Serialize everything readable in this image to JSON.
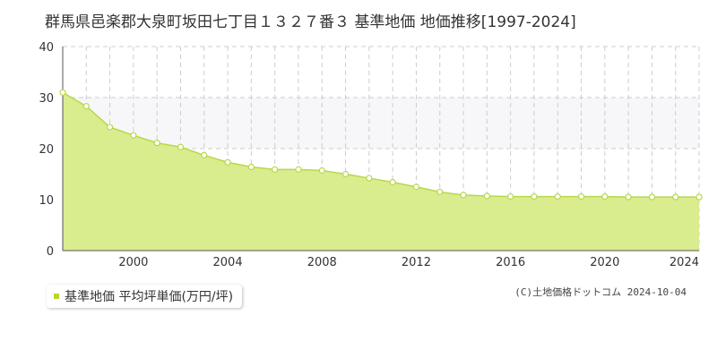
{
  "title": "群馬県邑楽郡大泉町坂田七丁目１３２７番３ 基準地価 地価推移[1997-2024]",
  "legend_label": "基準地価 平均坪単価(万円/坪)",
  "credit": "(C)土地価格ドットコム 2024-10-04",
  "colors": {
    "fill": "#d9ec8e",
    "line": "#b8d84a",
    "point_fill": "#ffffff",
    "band": "#f7f7fa",
    "grid": "#cccccc",
    "axis": "#555555",
    "legend_swatch": "#b5d734"
  },
  "chart_data": {
    "type": "area",
    "x": [
      1997,
      1998,
      1999,
      2000,
      2001,
      2002,
      2003,
      2004,
      2005,
      2006,
      2007,
      2008,
      2009,
      2010,
      2011,
      2012,
      2013,
      2014,
      2015,
      2016,
      2017,
      2018,
      2019,
      2020,
      2021,
      2022,
      2023,
      2024
    ],
    "series": [
      {
        "name": "基準地価 平均坪単価(万円/坪)",
        "values": [
          31.0,
          28.3,
          24.2,
          22.6,
          21.1,
          20.3,
          18.7,
          17.3,
          16.4,
          15.9,
          15.9,
          15.7,
          15.0,
          14.2,
          13.4,
          12.5,
          11.5,
          10.9,
          10.7,
          10.6,
          10.6,
          10.6,
          10.6,
          10.6,
          10.5,
          10.5,
          10.5,
          10.5
        ]
      }
    ],
    "x_ticks": [
      2000,
      2004,
      2008,
      2012,
      2016,
      2020,
      2024
    ],
    "y_ticks": [
      0,
      10,
      20,
      30,
      40
    ],
    "xlim": [
      1997,
      2024
    ],
    "ylim": [
      0,
      40
    ],
    "band_y": [
      20,
      30
    ],
    "grid": true
  }
}
